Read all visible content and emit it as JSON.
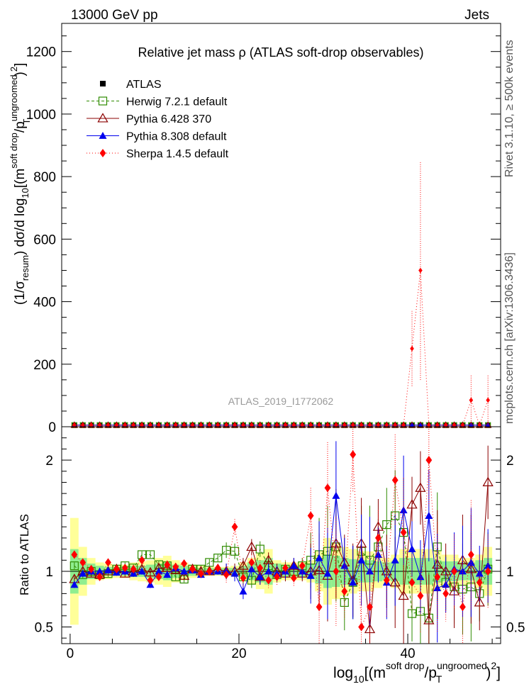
{
  "header": {
    "energy": "13000 GeV pp",
    "category": "Jets"
  },
  "side_labels": {
    "rivet": "Rivet 3.1.10, ≥ 500k events",
    "mcplots": "mcplots.cern.ch [arXiv:1306.3436]"
  },
  "watermark": "ATLAS_2019_I1772062",
  "colors": {
    "atlas": "#000000",
    "herwig": "#2e8b00",
    "pythia6": "#8b0000",
    "pythia8": "#0000ee",
    "sherpa": "#ff0000",
    "band_yellow": "#ffff99",
    "band_green": "#8fee8f"
  },
  "chart_data": [
    {
      "type": "line",
      "title": "Relative jet mass  ρ (ATLAS soft-drop observables)",
      "ylabel": "(1/σ_resum) dσ/d log10[(m^soft drop/pT^ungroomed)^2]",
      "xlabel": "",
      "xlim": [
        -1,
        51
      ],
      "ylim": [
        0,
        1290
      ],
      "yticks": [
        "0",
        "200",
        "400",
        "600",
        "800",
        "1000",
        "1200"
      ],
      "ytick_values": [
        0,
        200,
        400,
        600,
        800,
        1000,
        1200
      ],
      "legend": [
        "ATLAS",
        "Herwig 7.2.1 default",
        "Pythia 6.428 370",
        "Pythia 8.308 default",
        "Sherpa 1.4.5 default"
      ],
      "x": [
        0.5,
        1.5,
        2.5,
        3.5,
        4.5,
        5.5,
        6.5,
        7.5,
        8.5,
        9.5,
        10.5,
        11.5,
        12.5,
        13.5,
        14.5,
        15.5,
        16.5,
        17.5,
        18.5,
        19.5,
        20.5,
        21.5,
        22.5,
        23.5,
        24.5,
        25.5,
        26.5,
        27.5,
        28.5,
        29.5,
        30.5,
        31.5,
        32.5,
        33.5,
        34.5,
        35.5,
        36.5,
        37.5,
        38.5,
        39.5,
        40.5,
        41.5,
        42.5,
        43.5,
        44.5,
        45.5,
        46.5,
        47.5,
        48.5,
        49.5
      ],
      "series": [
        {
          "name": "ATLAS",
          "values": [
            5,
            5,
            5,
            5,
            5,
            5,
            5,
            5,
            5,
            5,
            5,
            5,
            5,
            5,
            5,
            5,
            5,
            5,
            5,
            5,
            5,
            5,
            5,
            5,
            5,
            5,
            5,
            5,
            5,
            5,
            5,
            5,
            5,
            5,
            5,
            5,
            5,
            5,
            5,
            5,
            5,
            5,
            5,
            5,
            5,
            5,
            5,
            5,
            5,
            5
          ]
        },
        {
          "name": "Herwig 7.2.1 default",
          "values": [
            5,
            5,
            5,
            5,
            5,
            5,
            5,
            5,
            5,
            5,
            5,
            5,
            5,
            5,
            5,
            5,
            5,
            5,
            5,
            5,
            5,
            5,
            5,
            5,
            5,
            5,
            5,
            5,
            5,
            5,
            5,
            5,
            5,
            5,
            5,
            5,
            5,
            5,
            5,
            5,
            5,
            5,
            5,
            5,
            5,
            5,
            5,
            5,
            5,
            5
          ]
        },
        {
          "name": "Pythia 6.428 370",
          "values": [
            5,
            5,
            5,
            5,
            5,
            5,
            5,
            5,
            5,
            5,
            5,
            5,
            5,
            5,
            5,
            5,
            5,
            5,
            5,
            5,
            5,
            5,
            5,
            5,
            5,
            5,
            5,
            5,
            5,
            5,
            5,
            5,
            5,
            5,
            5,
            5,
            5,
            5,
            5,
            5,
            5,
            5,
            5,
            5,
            5,
            5,
            5,
            5,
            5,
            5
          ]
        },
        {
          "name": "Pythia 8.308 default",
          "values": [
            5,
            5,
            5,
            5,
            5,
            5,
            5,
            5,
            5,
            5,
            5,
            5,
            5,
            5,
            5,
            5,
            5,
            5,
            5,
            5,
            5,
            5,
            5,
            5,
            5,
            5,
            5,
            5,
            5,
            5,
            5,
            5,
            5,
            5,
            5,
            5,
            5,
            5,
            5,
            5,
            5,
            5,
            5,
            5,
            5,
            5,
            5,
            5,
            5,
            5
          ]
        },
        {
          "name": "Sherpa 1.4.5 default",
          "values": [
            5,
            5,
            5,
            5,
            5,
            5,
            5,
            5,
            5,
            5,
            5,
            5,
            5,
            5,
            5,
            5,
            5,
            5,
            5,
            5,
            5,
            5,
            5,
            5,
            5,
            5,
            5,
            5,
            5,
            5,
            5,
            5,
            5,
            5,
            5,
            5,
            5,
            5,
            5,
            5,
            250,
            500,
            5,
            5,
            5,
            5,
            5,
            85,
            5,
            85
          ]
        }
      ]
    },
    {
      "type": "line",
      "title": "",
      "ylabel": "Ratio to ATLAS",
      "xlabel": "log10[(m^soft drop/pT^ungroomed)^2]",
      "xlim": [
        -1,
        51
      ],
      "ylim": [
        0.35,
        2.3
      ],
      "yticks": [
        "0.5",
        "1",
        "2"
      ],
      "ytick_values": [
        0.5,
        1,
        2
      ],
      "xticks": [
        "0",
        "20",
        "40"
      ],
      "xtick_values": [
        0,
        20,
        40
      ],
      "x": [
        0.5,
        1.5,
        2.5,
        3.5,
        4.5,
        5.5,
        6.5,
        7.5,
        8.5,
        9.5,
        10.5,
        11.5,
        12.5,
        13.5,
        14.5,
        15.5,
        16.5,
        17.5,
        18.5,
        19.5,
        20.5,
        21.5,
        22.5,
        23.5,
        24.5,
        25.5,
        26.5,
        27.5,
        28.5,
        29.5,
        30.5,
        31.5,
        32.5,
        33.5,
        34.5,
        35.5,
        36.5,
        37.5,
        38.5,
        39.5,
        40.5,
        41.5,
        42.5,
        43.5,
        44.5,
        45.5,
        46.5,
        47.5,
        48.5,
        49.5
      ],
      "band_yellow": [
        0.48,
        0.22,
        0.12,
        0.08,
        0.07,
        0.06,
        0.06,
        0.08,
        0.09,
        0.1,
        0.12,
        0.14,
        0.1,
        0.08,
        0.06,
        0.05,
        0.04,
        0.04,
        0.04,
        0.05,
        0.08,
        0.12,
        0.16,
        0.2,
        0.1,
        0.08,
        0.08,
        0.08,
        0.1,
        0.18,
        0.3,
        0.25,
        0.22,
        0.2,
        0.18,
        0.18,
        0.15,
        0.12,
        0.15,
        0.2,
        0.2,
        0.2,
        0.2,
        0.18,
        0.15,
        0.15,
        0.12,
        0.12,
        0.15,
        0.22
      ],
      "band_green": [
        0.2,
        0.12,
        0.07,
        0.05,
        0.04,
        0.04,
        0.04,
        0.05,
        0.05,
        0.06,
        0.07,
        0.08,
        0.06,
        0.05,
        0.04,
        0.03,
        0.03,
        0.03,
        0.03,
        0.03,
        0.05,
        0.08,
        0.1,
        0.12,
        0.07,
        0.05,
        0.05,
        0.05,
        0.07,
        0.11,
        0.15,
        0.14,
        0.12,
        0.11,
        0.1,
        0.1,
        0.09,
        0.08,
        0.09,
        0.12,
        0.12,
        0.12,
        0.12,
        0.1,
        0.09,
        0.09,
        0.08,
        0.08,
        0.1,
        0.12
      ],
      "series": [
        {
          "name": "Herwig 7.2.1 default",
          "values": [
            1.05,
            0.97,
            1.0,
            0.97,
            0.98,
            1.02,
            1.05,
            1.03,
            1.15,
            1.15,
            1.06,
            1.05,
            0.95,
            0.93,
            1.02,
            1.02,
            1.08,
            1.12,
            1.19,
            1.18,
            0.95,
            0.92,
            1.2,
            1.05,
            0.97,
            1.02,
            1.0,
            1.05,
            1.1,
            1.15,
            1.18,
            1.22,
            0.72,
            0.9,
            1.18,
            1.1,
            1.22,
            1.42,
            1.5,
            1.35,
            0.62,
            0.64,
            0.58,
            1.22,
            0.9,
            0.86,
            0.84,
            0.86,
            0.8,
            1.02
          ]
        },
        {
          "name": "Pythia 6.428 370",
          "values": [
            0.93,
            1.0,
            0.98,
            0.97,
            1.0,
            1.02,
            0.98,
            1.0,
            1.02,
            0.99,
            1.03,
            1.03,
            1.01,
            0.96,
            1.02,
            1.0,
            1.0,
            1.02,
            1.0,
            1.0,
            1.05,
            1.22,
            0.95,
            1.1,
            1.0,
            0.98,
            1.05,
            0.98,
            1.0,
            1.01,
            0.96,
            1.25,
            1.08,
            0.92,
            1.25,
            0.48,
            1.4,
            1.0,
            0.9,
            0.78,
            1.6,
            1.75,
            0.56,
            1.06,
            1.0,
            0.82,
            1.1,
            1.02,
            0.72,
            1.8
          ]
        },
        {
          "name": "Pythia 8.308 default",
          "values": [
            0.88,
            0.98,
            1.0,
            1.0,
            1.01,
            0.99,
            1.0,
            0.98,
            1.0,
            0.88,
            1.0,
            0.97,
            1.03,
            1.0,
            1.01,
            0.97,
            1.0,
            1.0,
            1.0,
            0.98,
            0.82,
            1.02,
            0.95,
            1.0,
            0.98,
            1.0,
            1.05,
            1.0,
            0.96,
            1.12,
            0.98,
            1.68,
            1.05,
            0.9,
            1.1,
            1.0,
            1.15,
            0.9,
            1.1,
            1.55,
            1.2,
            0.95,
            1.5,
            0.85,
            0.88,
            1.02,
            1.0,
            1.08,
            0.98,
            1.05
          ]
        },
        {
          "name": "Sherpa 1.4.5 default",
          "values": [
            1.15,
            1.08,
            1.02,
            0.95,
            1.08,
            1.02,
            1.03,
            1.02,
            1.1,
            0.92,
            0.95,
            1.06,
            1.04,
            1.07,
            1.02,
            0.98,
            1.0,
            1.03,
            0.97,
            1.4,
            0.94,
            1.08,
            1.03,
            0.92,
            0.95,
            1.03,
            0.94,
            1.05,
            1.5,
            0.68,
            1.75,
            1.0,
            0.82,
            2.05,
            0.5,
            0.68,
            1.3,
            0.92,
            1.82,
            1.35,
            0.9,
            0.78,
            2.0,
            0.95,
            0.8,
            1.0,
            0.68,
            1.15,
            0.9,
            1.0
          ]
        }
      ]
    }
  ]
}
